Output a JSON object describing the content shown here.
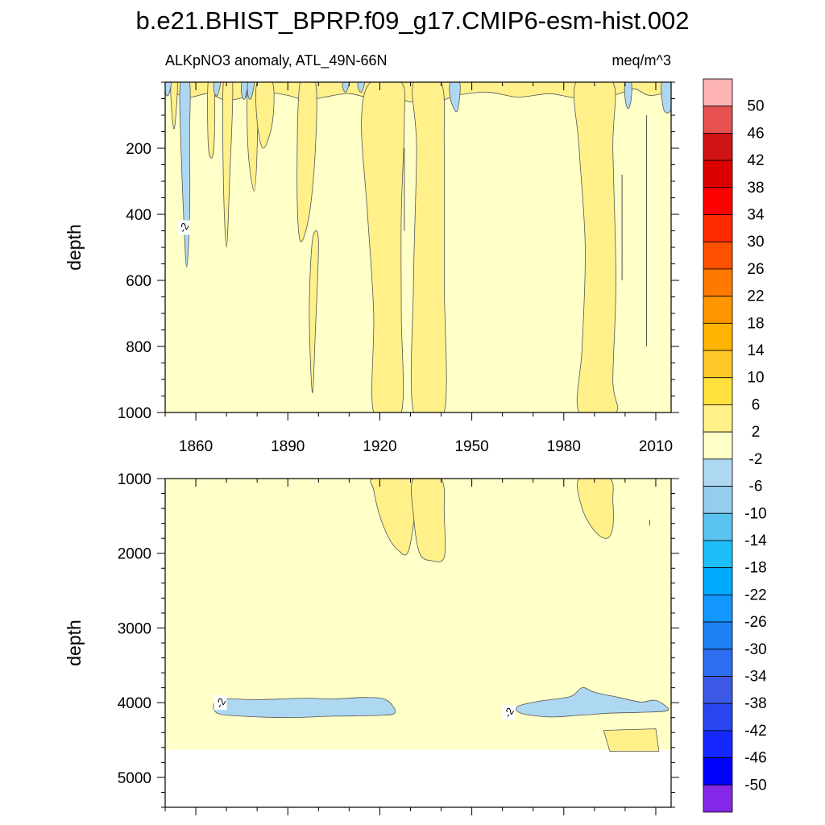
{
  "title": "b.e21.BHIST_BPRP.f09_g17.CMIP6-esm-hist.002",
  "subtitle_left": "ALKpNO3 anomaly, ATL_49N-66N",
  "subtitle_right": "meq/m^3",
  "colors": {
    "background_fill": "#ffffc8",
    "positive_2_6": "#fff08a",
    "negative_m6_m2": "#aed8f2",
    "contour_line": "#555555",
    "no_data": "#ffffff"
  },
  "chart_data": [
    {
      "type": "heatmap",
      "subtype": "filled-contour",
      "panel": "upper",
      "xlabel": "",
      "ylabel": "depth",
      "xlim": [
        1850,
        2015
      ],
      "ylim": [
        1000,
        0
      ],
      "x_ticks": [
        1860,
        1890,
        1920,
        1950,
        1980,
        2010
      ],
      "y_ticks": [
        200,
        400,
        600,
        800,
        1000
      ],
      "x_tick_labels": [
        "1860",
        "1890",
        "1920",
        "1950",
        "1980",
        "2010"
      ],
      "y_tick_labels": [
        "200",
        "400",
        "600",
        "800",
        "1000"
      ],
      "contour_labels": [
        {
          "text": "-2",
          "x": 1856,
          "y": 440
        }
      ],
      "regions": [
        {
          "level": "2-6",
          "x_range": [
            1917,
            1927
          ],
          "y_range": [
            0,
            1000
          ]
        },
        {
          "level": "2-6",
          "x_range": [
            1931,
            1941
          ],
          "y_range": [
            0,
            1000
          ]
        },
        {
          "level": "2-6",
          "x_range": [
            1984,
            1997
          ],
          "y_range": [
            0,
            1000
          ]
        },
        {
          "level": "2-6",
          "x_range": [
            1894,
            1900
          ],
          "y_range": [
            0,
            480
          ]
        },
        {
          "level": "-6--2",
          "x_range": [
            1855,
            1858
          ],
          "y_range": [
            0,
            560
          ]
        },
        {
          "level": "-6--2",
          "x_range": [
            1943,
            1946
          ],
          "y_range": [
            0,
            90
          ]
        },
        {
          "level": "-6--2",
          "x_range": [
            1875,
            1877
          ],
          "y_range": [
            0,
            50
          ]
        },
        {
          "level": "-6--2",
          "x_range": [
            1877,
            1879
          ],
          "y_range": [
            0,
            50
          ]
        },
        {
          "level": "-6--2",
          "x_range": [
            2000,
            2002
          ],
          "y_range": [
            0,
            80
          ]
        },
        {
          "level": "-6--2",
          "x_range": [
            2012,
            2015
          ],
          "y_range": [
            0,
            90
          ]
        }
      ]
    },
    {
      "type": "heatmap",
      "subtype": "filled-contour",
      "panel": "lower",
      "xlabel": "",
      "ylabel": "depth",
      "xlim": [
        1850,
        2015
      ],
      "ylim": [
        5400,
        1000
      ],
      "x_ticks": [
        1860,
        1890,
        1920,
        1950,
        1980,
        2010
      ],
      "y_ticks": [
        1000,
        2000,
        3000,
        4000,
        5000
      ],
      "y_tick_labels": [
        "1000",
        "2000",
        "3000",
        "4000",
        "5000"
      ],
      "data_bottom_depth": 4630,
      "contour_labels": [
        {
          "text": "-2",
          "x": 1868,
          "y": 4000
        },
        {
          "text": "-2",
          "x": 1962,
          "y": 4130
        }
      ],
      "regions": [
        {
          "level": "2-6",
          "x_range": [
            1918,
            1931
          ],
          "y_range": [
            1000,
            2000
          ]
        },
        {
          "level": "2-6",
          "x_range": [
            1931,
            1941
          ],
          "y_range": [
            1000,
            2100
          ]
        },
        {
          "level": "2-6",
          "x_range": [
            1985,
            1996
          ],
          "y_range": [
            1000,
            1800
          ]
        },
        {
          "level": "2-6",
          "x_range": [
            1993,
            2010
          ],
          "y_range": [
            4350,
            4630
          ]
        },
        {
          "level": "-6--2",
          "x_range": [
            1866,
            1925
          ],
          "y_range": [
            3930,
            4220
          ]
        },
        {
          "level": "-6--2",
          "x_range": [
            1965,
            2014
          ],
          "y_range": [
            3780,
            4190
          ]
        }
      ]
    }
  ],
  "legend": {
    "type": "colorbar",
    "labels": [
      "50",
      "46",
      "42",
      "38",
      "34",
      "30",
      "26",
      "22",
      "18",
      "14",
      "10",
      "6",
      "2",
      "-2",
      "-6",
      "-10",
      "-14",
      "-18",
      "-22",
      "-26",
      "-30",
      "-34",
      "-38",
      "-42",
      "-46",
      "-50"
    ],
    "colors_top_to_bottom": [
      "#ffb4b4",
      "#e65050",
      "#d01414",
      "#dc0000",
      "#ff0000",
      "#ff2a00",
      "#ff5000",
      "#ff7800",
      "#ff9600",
      "#ffb400",
      "#ffc828",
      "#ffe03c",
      "#fff08a",
      "#ffffc8",
      "#aed8f2",
      "#96cdee",
      "#5ac3f0",
      "#1ebef8",
      "#00aaff",
      "#1496ff",
      "#1e82f5",
      "#2d6ef0",
      "#3c5ae6",
      "#2846f0",
      "#1428ff",
      "#0000ff",
      "#8228e6"
    ]
  }
}
